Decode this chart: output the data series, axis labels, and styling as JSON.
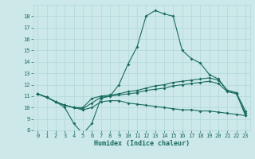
{
  "title": "",
  "xlabel": "Humidex (Indice chaleur)",
  "bg_color": "#cce8e8",
  "line_color": "#1a6b60",
  "ylim": [
    8,
    19
  ],
  "xlim": [
    -0.5,
    23.5
  ],
  "yticks": [
    8,
    9,
    10,
    11,
    12,
    13,
    14,
    15,
    16,
    17,
    18
  ],
  "xticks": [
    0,
    1,
    2,
    3,
    4,
    5,
    6,
    7,
    8,
    9,
    10,
    11,
    12,
    13,
    14,
    15,
    16,
    17,
    18,
    19,
    20,
    21,
    22,
    23
  ],
  "line1_x": [
    0,
    1,
    2,
    3,
    4,
    5,
    6,
    7,
    8,
    9,
    10,
    11,
    12,
    13,
    14,
    15,
    16,
    17,
    18,
    19,
    20,
    21,
    22,
    23
  ],
  "line1_y": [
    11.2,
    10.9,
    10.5,
    10.0,
    8.6,
    7.7,
    8.6,
    10.8,
    11.0,
    12.0,
    13.8,
    15.3,
    18.0,
    18.5,
    18.2,
    18.0,
    15.0,
    14.3,
    13.9,
    12.9,
    12.5,
    11.5,
    11.3,
    9.3
  ],
  "line2_x": [
    0,
    1,
    2,
    3,
    4,
    5,
    6,
    7,
    8,
    9,
    10,
    11,
    12,
    13,
    14,
    15,
    16,
    17,
    18,
    19,
    20,
    21,
    22,
    23
  ],
  "line2_y": [
    11.2,
    10.9,
    10.5,
    10.2,
    10.0,
    10.0,
    10.8,
    11.0,
    11.1,
    11.2,
    11.4,
    11.5,
    11.7,
    11.9,
    12.0,
    12.2,
    12.3,
    12.4,
    12.5,
    12.6,
    12.4,
    11.5,
    11.3,
    9.7
  ],
  "line3_x": [
    0,
    1,
    2,
    3,
    4,
    5,
    6,
    7,
    8,
    9,
    10,
    11,
    12,
    13,
    14,
    15,
    16,
    17,
    18,
    19,
    20,
    21,
    22,
    23
  ],
  "line3_y": [
    11.2,
    10.9,
    10.5,
    10.2,
    10.0,
    9.9,
    10.4,
    10.9,
    11.0,
    11.1,
    11.2,
    11.3,
    11.5,
    11.6,
    11.7,
    11.9,
    12.0,
    12.1,
    12.2,
    12.3,
    12.1,
    11.4,
    11.2,
    9.5
  ],
  "line4_x": [
    0,
    1,
    2,
    3,
    4,
    5,
    6,
    7,
    8,
    9,
    10,
    11,
    12,
    13,
    14,
    15,
    16,
    17,
    18,
    19,
    20,
    21,
    22,
    23
  ],
  "line4_y": [
    11.2,
    10.9,
    10.5,
    10.2,
    10.0,
    9.8,
    10.0,
    10.5,
    10.6,
    10.6,
    10.4,
    10.3,
    10.2,
    10.1,
    10.0,
    9.9,
    9.8,
    9.8,
    9.7,
    9.7,
    9.6,
    9.5,
    9.4,
    9.3
  ],
  "grid_color": "#b0d8d8",
  "tick_color": "#1a6b60",
  "xlabel_fontsize": 6.0,
  "tick_fontsize": 5.0
}
